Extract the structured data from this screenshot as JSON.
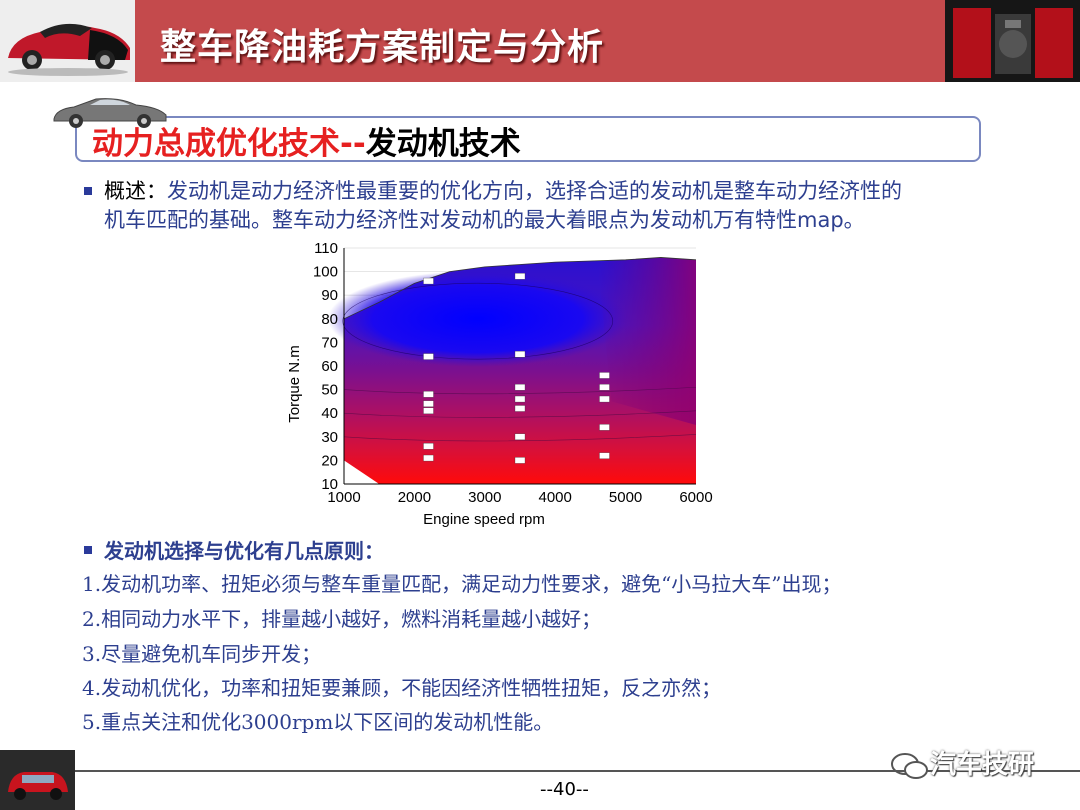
{
  "header": {
    "title": "整车降油耗方案制定与分析"
  },
  "section": {
    "title_red": "动力总成优化技术--",
    "title_black": "发动机技术"
  },
  "overview": {
    "label": "概述：",
    "line1": "发动机是动力经济性最重要的优化方向，选择合适的发动机是整车动力经济性的",
    "line2a": "机车匹配的基础。整车动力经济性对发动机的最大着眼点为发动机万有特性",
    "line2b": "map",
    "line2c": "。"
  },
  "principles": {
    "title": "发动机选择与优化有几点原则：",
    "items": [
      "1.发动机功率、扭矩必须与整车重量匹配，满足动力性要求，避免“小马拉大车”出现；",
      "2.相同动力水平下，排量越小越好，燃料消耗量越小越好；",
      "3.尽量避免机车同步开发；",
      "4.发动机优化，功率和扭矩要兼顾，不能因经济性牺牲扭矩，反之亦然；",
      "5.重点关注和优化3000rpm以下区间的发动机性能。"
    ]
  },
  "footer": {
    "page": "--40--",
    "watermark": "汽车技研"
  },
  "colors": {
    "header_band": "#c44a4c",
    "accent_red": "#e62020",
    "text_blue": "#2d3f8f"
  },
  "chart_data": {
    "type": "heatmap",
    "xlabel": "Engine speed  rpm",
    "ylabel": "Torque  N.m",
    "xlim": [
      1000,
      6000
    ],
    "ylim": [
      10,
      110
    ],
    "xticks": [
      1000,
      2000,
      3000,
      4000,
      5000,
      6000
    ],
    "yticks": [
      10,
      20,
      30,
      40,
      50,
      60,
      70,
      80,
      90,
      100,
      110
    ],
    "colormap": [
      "#0000ff",
      "#3a1ad8",
      "#6a1aa0",
      "#a0106a",
      "#d01040",
      "#ff0000"
    ],
    "boundary": [
      [
        1000,
        80
      ],
      [
        1500,
        87
      ],
      [
        2000,
        95
      ],
      [
        2500,
        100
      ],
      [
        3000,
        102
      ],
      [
        3500,
        103
      ],
      [
        4000,
        104
      ],
      [
        4500,
        104.5
      ],
      [
        5000,
        105
      ],
      [
        5500,
        106
      ],
      [
        6000,
        105
      ]
    ],
    "contour_labels": [
      {
        "x": 2200,
        "y": 96,
        "text": ""
      },
      {
        "x": 3500,
        "y": 98,
        "text": ""
      },
      {
        "x": 2200,
        "y": 64,
        "text": ""
      },
      {
        "x": 3500,
        "y": 65,
        "text": ""
      },
      {
        "x": 2200,
        "y": 48,
        "text": ""
      },
      {
        "x": 2200,
        "y": 44,
        "text": ""
      },
      {
        "x": 2200,
        "y": 41,
        "text": ""
      },
      {
        "x": 3500,
        "y": 51,
        "text": ""
      },
      {
        "x": 3500,
        "y": 46,
        "text": ""
      },
      {
        "x": 3500,
        "y": 42,
        "text": ""
      },
      {
        "x": 4700,
        "y": 56,
        "text": ""
      },
      {
        "x": 4700,
        "y": 51,
        "text": ""
      },
      {
        "x": 4700,
        "y": 46,
        "text": ""
      },
      {
        "x": 4700,
        "y": 34,
        "text": ""
      },
      {
        "x": 3500,
        "y": 30,
        "text": ""
      },
      {
        "x": 2200,
        "y": 26,
        "text": ""
      },
      {
        "x": 2200,
        "y": 21,
        "text": ""
      },
      {
        "x": 3500,
        "y": 20,
        "text": ""
      },
      {
        "x": 4700,
        "y": 22,
        "text": ""
      }
    ]
  }
}
